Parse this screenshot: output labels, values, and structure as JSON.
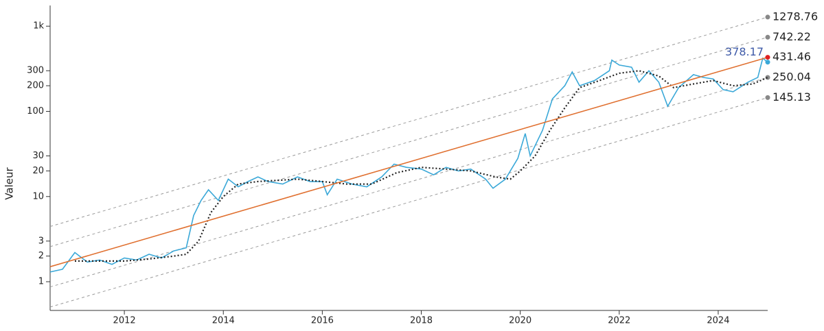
{
  "chart_data": {
    "type": "line",
    "y_label": "Valeur",
    "log_y": true,
    "xlim": [
      2010.5,
      2025.0
    ],
    "xticks": [
      2012,
      2014,
      2016,
      2018,
      2020,
      2022,
      2024
    ],
    "ylim": [
      0.46,
      1750
    ],
    "yticks": [
      1,
      2,
      3,
      10,
      20,
      30,
      100,
      200,
      300,
      {
        "value": 1000,
        "label": "1k"
      }
    ],
    "series": [
      {
        "color": "#999999",
        "dash": "dashed",
        "end_dot": "#888888",
        "label_last": true,
        "x": [
          2010.5,
          2025.0
        ],
        "values": [
          4.45,
          1278.76
        ]
      },
      {
        "color": "#999999",
        "dash": "dashed",
        "end_dot": "#888888",
        "label_last": true,
        "x": [
          2010.5,
          2025.0
        ],
        "values": [
          2.58,
          742.22
        ]
      },
      {
        "color": "#999999",
        "dash": "dashed",
        "end_dot": "#888888",
        "label_last": true,
        "x": [
          2010.5,
          2025.0
        ],
        "values": [
          0.869,
          250.04
        ]
      },
      {
        "color": "#999999",
        "dash": "dashed",
        "end_dot": "#888888",
        "label_last": true,
        "x": [
          2010.5,
          2025.0
        ],
        "values": [
          0.505,
          145.13
        ]
      },
      {
        "color": "#3aa8d8",
        "dash": "solid",
        "end_dot": "#3aa8d8",
        "label_last": true,
        "label_color": "#3e5aa8",
        "x": [
          2010.5,
          2010.75,
          2011.0,
          2011.25,
          2011.5,
          2011.75,
          2012.0,
          2012.25,
          2012.5,
          2012.75,
          2013.0,
          2013.25,
          2013.4,
          2013.55,
          2013.7,
          2013.9,
          2014.1,
          2014.3,
          2014.5,
          2014.7,
          2014.9,
          2015.2,
          2015.5,
          2015.75,
          2016.0,
          2016.1,
          2016.3,
          2016.6,
          2016.9,
          2017.2,
          2017.45,
          2017.7,
          2018.0,
          2018.25,
          2018.5,
          2018.75,
          2019.0,
          2019.3,
          2019.45,
          2019.7,
          2019.95,
          2020.1,
          2020.2,
          2020.45,
          2020.65,
          2020.9,
          2021.05,
          2021.2,
          2021.5,
          2021.8,
          2021.85,
          2022.0,
          2022.25,
          2022.4,
          2022.6,
          2022.8,
          2022.98,
          2023.2,
          2023.5,
          2023.7,
          2023.9,
          2024.1,
          2024.3,
          2024.6,
          2024.8,
          2024.9,
          2025.0
        ],
        "values": [
          1.3,
          1.4,
          2.2,
          1.7,
          1.8,
          1.6,
          1.9,
          1.8,
          2.1,
          1.9,
          2.3,
          2.5,
          6,
          9,
          12,
          9,
          16,
          13,
          15,
          17,
          15,
          14,
          17,
          15,
          15,
          10.5,
          16,
          14,
          13,
          17,
          24,
          22,
          21,
          18,
          22,
          20,
          21,
          16,
          12.5,
          16,
          28,
          55,
          30,
          60,
          140,
          200,
          290,
          200,
          230,
          300,
          400,
          350,
          330,
          220,
          300,
          220,
          115,
          190,
          270,
          250,
          240,
          180,
          170,
          220,
          250,
          420,
          378.17
        ]
      },
      {
        "color": "#222222",
        "dash": "dotted",
        "x": [
          2011.0,
          2011.5,
          2012.0,
          2012.5,
          2013.0,
          2013.25,
          2013.5,
          2013.75,
          2014.0,
          2014.3,
          2014.7,
          2015.5,
          2016.0,
          2016.5,
          2017.0,
          2017.5,
          2018.0,
          2018.5,
          2019.0,
          2019.5,
          2019.8,
          2020.0,
          2020.3,
          2020.6,
          2020.9,
          2021.2,
          2021.6,
          2022.0,
          2022.4,
          2022.8,
          2023.1,
          2023.5,
          2023.9,
          2024.3,
          2024.7,
          2025.0
        ],
        "values": [
          1.75,
          1.75,
          1.75,
          1.85,
          2.0,
          2.1,
          3.0,
          6.5,
          10,
          14,
          15,
          16,
          15,
          14,
          14,
          19,
          22,
          21,
          20,
          17,
          16,
          20,
          30,
          60,
          110,
          190,
          230,
          280,
          300,
          260,
          190,
          210,
          230,
          200,
          210,
          250
        ]
      },
      {
        "color": "#e07030",
        "dash": "solid",
        "end_dot": "#e02020",
        "label_last": true,
        "x": [
          2010.5,
          2025.0
        ],
        "values": [
          1.5,
          431.46
        ]
      }
    ]
  }
}
